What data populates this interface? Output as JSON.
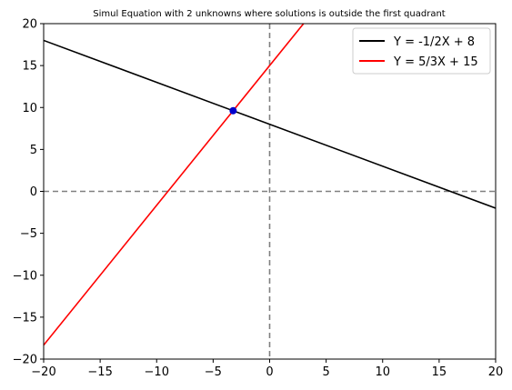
{
  "chart_data": {
    "type": "line",
    "title": "Simul Equation with 2 unknowns where solutions is outside the first quadrant",
    "xlabel": "",
    "ylabel": "",
    "xlim": [
      -20,
      20
    ],
    "ylim": [
      -20,
      20
    ],
    "x_ticks": [
      "−20",
      "−15",
      "−10",
      "−5",
      "0",
      "5",
      "10",
      "15",
      "20"
    ],
    "y_ticks": [
      "−20",
      "−15",
      "−10",
      "−5",
      "0",
      "5",
      "10",
      "15",
      "20"
    ],
    "grid": false,
    "legend_position": "top-right",
    "series": [
      {
        "name": "Y = -1/2X + 8",
        "color": "#000000",
        "slope": -0.5,
        "intercept": 8,
        "x": [
          -20,
          20
        ],
        "y": [
          18,
          -2
        ]
      },
      {
        "name": "Y = 5/3X + 15",
        "color": "#ff0000",
        "slope": 1.6667,
        "intercept": 15,
        "x": [
          -20,
          3
        ],
        "y": [
          -18.33,
          20
        ]
      }
    ],
    "reference_lines": [
      {
        "orientation": "horizontal",
        "value": 0,
        "style": "dashed",
        "color": "#808080"
      },
      {
        "orientation": "vertical",
        "value": 0,
        "style": "dashed",
        "color": "#808080"
      }
    ],
    "points": [
      {
        "x": -3.23,
        "y": 9.62,
        "color": "#0000cc"
      }
    ]
  }
}
